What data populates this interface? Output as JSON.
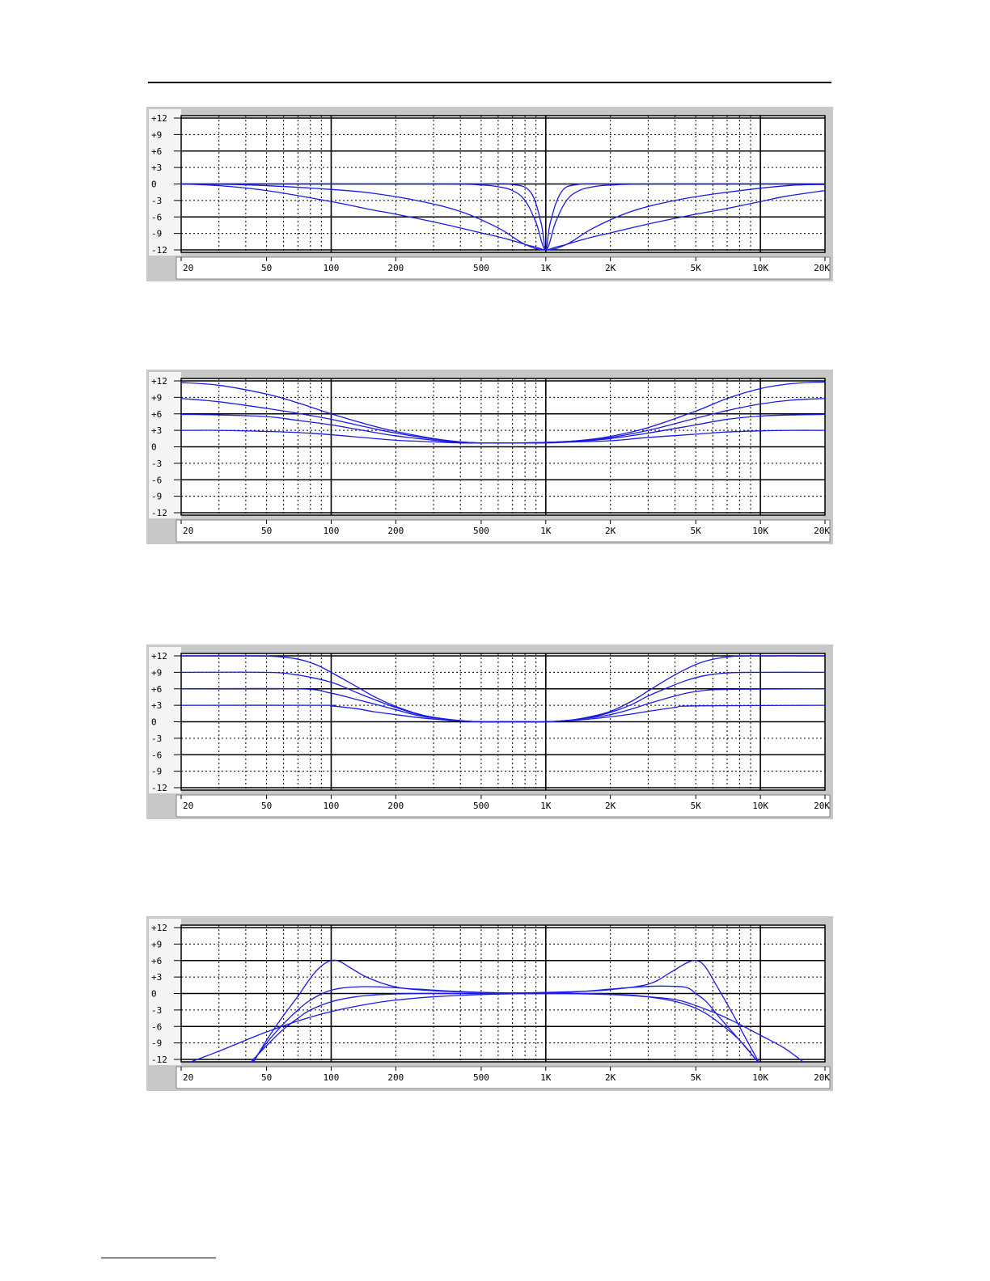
{
  "chart_data": [
    {
      "type": "line",
      "title": "",
      "xlabel": "",
      "ylabel": "",
      "x_scale": "log",
      "xlim": [
        20,
        20000
      ],
      "ylim": [
        -12,
        12
      ],
      "grid": true,
      "x_tick_labels": [
        {
          "value": 20,
          "label": "20"
        },
        {
          "value": 50,
          "label": "50"
        },
        {
          "value": 100,
          "label": "100"
        },
        {
          "value": 200,
          "label": "200"
        },
        {
          "value": 500,
          "label": "500"
        },
        {
          "value": 1000,
          "label": "1K"
        },
        {
          "value": 2000,
          "label": "2K"
        },
        {
          "value": 5000,
          "label": "5K"
        },
        {
          "value": 10000,
          "label": "10K"
        },
        {
          "value": 20000,
          "label": "20K"
        }
      ],
      "y_tick_labels": [
        {
          "value": 12,
          "label": "+12"
        },
        {
          "value": 9,
          "label": "+9"
        },
        {
          "value": 6,
          "label": "+6"
        },
        {
          "value": 3,
          "label": "+3"
        },
        {
          "value": 0,
          "label": "0"
        },
        {
          "value": -3,
          "label": "-3"
        },
        {
          "value": -6,
          "label": "-6"
        },
        {
          "value": -9,
          "label": "-9"
        },
        {
          "value": -12,
          "label": "-12"
        }
      ],
      "line_color": "#1a1ae6",
      "series": [
        {
          "x": [
            20,
            200,
            500,
            700,
            850,
            950,
            1000,
            1050,
            1180,
            1400,
            2000,
            5000,
            20000
          ],
          "y": [
            0,
            0,
            0,
            -0.1,
            -1.5,
            -7,
            -12,
            -7,
            -1.5,
            -0.1,
            0,
            0,
            0
          ]
        },
        {
          "x": [
            20,
            300,
            500,
            600,
            700,
            800,
            900,
            1000,
            1110,
            1250,
            1430,
            1670,
            2000,
            3300,
            20000
          ],
          "y": [
            0,
            0,
            -0.2,
            -0.5,
            -1.2,
            -3,
            -7,
            -12,
            -7,
            -3,
            -1.2,
            -0.5,
            -0.2,
            0,
            0
          ]
        },
        {
          "x": [
            20,
            30,
            50,
            100,
            150,
            250,
            400,
            600,
            800,
            1000,
            1250,
            1670,
            2500,
            4000,
            6700,
            13300,
            20000
          ],
          "y": [
            0,
            -0.05,
            -0.3,
            -1,
            -1.6,
            -3,
            -5,
            -8,
            -11,
            -12,
            -11,
            -8,
            -5,
            -3,
            -1.6,
            -0.3,
            -0.1
          ]
        },
        {
          "x": [
            20,
            30,
            50,
            100,
            150,
            200,
            300,
            400,
            500,
            600,
            700,
            800,
            900,
            1000,
            1110,
            1250,
            1430,
            1670,
            2000,
            2500,
            3330,
            5000,
            6700,
            10000,
            13300,
            20000
          ],
          "y": [
            0,
            -0.3,
            -1.2,
            -3.2,
            -4.6,
            -5.5,
            -6.9,
            -8,
            -8.9,
            -9.6,
            -10.3,
            -11,
            -11.5,
            -12,
            -11.5,
            -11,
            -10.3,
            -9.6,
            -8.9,
            -8,
            -6.9,
            -5.5,
            -4.6,
            -3.2,
            -2.2,
            -1.2
          ]
        }
      ]
    },
    {
      "type": "line",
      "title": "",
      "xlabel": "",
      "ylabel": "",
      "x_scale": "log",
      "xlim": [
        20,
        20000
      ],
      "ylim": [
        -12,
        12
      ],
      "grid": true,
      "x_tick_labels": [
        {
          "value": 20,
          "label": "20"
        },
        {
          "value": 50,
          "label": "50"
        },
        {
          "value": 100,
          "label": "100"
        },
        {
          "value": 200,
          "label": "200"
        },
        {
          "value": 500,
          "label": "500"
        },
        {
          "value": 1000,
          "label": "1K"
        },
        {
          "value": 2000,
          "label": "2K"
        },
        {
          "value": 5000,
          "label": "5K"
        },
        {
          "value": 10000,
          "label": "10K"
        },
        {
          "value": 20000,
          "label": "20K"
        }
      ],
      "y_tick_labels": [
        {
          "value": 12,
          "label": "+12"
        },
        {
          "value": 9,
          "label": "+9"
        },
        {
          "value": 6,
          "label": "+6"
        },
        {
          "value": 3,
          "label": "+3"
        },
        {
          "value": 0,
          "label": "0"
        },
        {
          "value": -3,
          "label": "-3"
        },
        {
          "value": -6,
          "label": "-6"
        },
        {
          "value": -9,
          "label": "-9"
        },
        {
          "value": -12,
          "label": "-12"
        }
      ],
      "line_color": "#1a1ae6",
      "series": [
        {
          "x": [
            20,
            30,
            50,
            70,
            100,
            150,
            200,
            300,
            400,
            500,
            700,
            1000,
            1400,
            2000,
            3000,
            5000,
            7000,
            10000,
            14000,
            20000
          ],
          "y": [
            11.7,
            11.2,
            9.6,
            8,
            6,
            4,
            2.8,
            1.5,
            0.9,
            0.7,
            0.7,
            0.8,
            1.1,
            1.9,
            3.5,
            6.5,
            8.8,
            10.6,
            11.5,
            11.8
          ]
        },
        {
          "x": [
            20,
            30,
            50,
            70,
            100,
            150,
            200,
            300,
            400,
            500,
            700,
            1000,
            1400,
            2000,
            3000,
            5000,
            7000,
            10000,
            14000,
            20000
          ],
          "y": [
            8.8,
            8.2,
            7,
            6.1,
            5,
            3.5,
            2.5,
            1.4,
            0.9,
            0.7,
            0.7,
            0.8,
            1.1,
            1.7,
            3,
            5.2,
            6.6,
            7.8,
            8.5,
            8.8
          ]
        },
        {
          "x": [
            20,
            30,
            50,
            70,
            100,
            150,
            200,
            300,
            400,
            500,
            700,
            1000,
            1400,
            2000,
            3000,
            5000,
            7000,
            10000,
            14000,
            20000
          ],
          "y": [
            5.9,
            5.8,
            5.5,
            4.8,
            4,
            2.8,
            2,
            1.2,
            0.8,
            0.7,
            0.7,
            0.8,
            1,
            1.5,
            2.5,
            4,
            5,
            5.6,
            5.8,
            5.9
          ]
        },
        {
          "x": [
            20,
            30,
            50,
            70,
            100,
            150,
            200,
            300,
            400,
            500,
            700,
            1000,
            1400,
            2000,
            3000,
            5000,
            7000,
            10000,
            14000,
            20000
          ],
          "y": [
            3,
            3,
            2.8,
            2.6,
            2.2,
            1.6,
            1.2,
            0.9,
            0.7,
            0.7,
            0.7,
            0.7,
            0.9,
            1.1,
            1.7,
            2.3,
            2.7,
            2.9,
            3,
            3
          ]
        }
      ]
    },
    {
      "type": "line",
      "title": "",
      "xlabel": "",
      "ylabel": "",
      "x_scale": "log",
      "xlim": [
        20,
        20000
      ],
      "ylim": [
        -12,
        12
      ],
      "grid": true,
      "x_tick_labels": [
        {
          "value": 20,
          "label": "20"
        },
        {
          "value": 50,
          "label": "50"
        },
        {
          "value": 100,
          "label": "100"
        },
        {
          "value": 200,
          "label": "200"
        },
        {
          "value": 500,
          "label": "500"
        },
        {
          "value": 1000,
          "label": "1K"
        },
        {
          "value": 2000,
          "label": "2K"
        },
        {
          "value": 5000,
          "label": "5K"
        },
        {
          "value": 10000,
          "label": "10K"
        },
        {
          "value": 20000,
          "label": "20K"
        }
      ],
      "y_tick_labels": [
        {
          "value": 12,
          "label": "+12"
        },
        {
          "value": 9,
          "label": "+9"
        },
        {
          "value": 6,
          "label": "+6"
        },
        {
          "value": 3,
          "label": "+3"
        },
        {
          "value": 0,
          "label": "0"
        },
        {
          "value": -3,
          "label": "-3"
        },
        {
          "value": -6,
          "label": "-6"
        },
        {
          "value": -9,
          "label": "-9"
        },
        {
          "value": -12,
          "label": "-12"
        }
      ],
      "line_color": "#1a1ae6",
      "series": [
        {
          "x": [
            20,
            40,
            55,
            70,
            85,
            100,
            130,
            160,
            200,
            250,
            300,
            400,
            500,
            700,
            1000,
            1300,
            1600,
            2000,
            2500,
            3000,
            3700,
            4500,
            5500,
            7000,
            9000,
            20000
          ],
          "y": [
            12,
            12,
            11.9,
            11.4,
            10.4,
            9,
            6.5,
            4.5,
            2.8,
            1.5,
            0.8,
            0.2,
            0,
            0,
            0,
            0.3,
            0.9,
            1.9,
            3.7,
            5.6,
            7.8,
            9.6,
            11,
            11.8,
            12,
            12
          ]
        },
        {
          "x": [
            20,
            50,
            70,
            100,
            130,
            160,
            200,
            250,
            300,
            400,
            500,
            700,
            1000,
            1300,
            1600,
            2000,
            2500,
            3000,
            3700,
            4500,
            5500,
            7000,
            10000,
            20000
          ],
          "y": [
            9,
            9,
            8.5,
            7.2,
            5.4,
            4,
            2.6,
            1.4,
            0.8,
            0.2,
            0,
            0,
            0,
            0.3,
            0.8,
            1.7,
            3.1,
            4.7,
            6.2,
            7.5,
            8.4,
            8.9,
            9,
            9
          ]
        },
        {
          "x": [
            20,
            70,
            100,
            130,
            160,
            200,
            250,
            300,
            400,
            500,
            700,
            1000,
            1300,
            1600,
            2000,
            2500,
            3000,
            4000,
            5000,
            7000,
            20000
          ],
          "y": [
            6,
            6,
            5.2,
            4.1,
            3.2,
            2.2,
            1.2,
            0.7,
            0.2,
            0,
            0,
            0,
            0.3,
            0.7,
            1.3,
            2.3,
            3.3,
            4.7,
            5.5,
            5.9,
            6
          ]
        },
        {
          "x": [
            20,
            90,
            100,
            130,
            160,
            200,
            250,
            300,
            400,
            500,
            700,
            1000,
            1300,
            1600,
            2000,
            2500,
            3000,
            4000,
            5000,
            20000
          ],
          "y": [
            3,
            3,
            2.9,
            2.4,
            1.8,
            1.3,
            0.8,
            0.5,
            0.1,
            0,
            0,
            0,
            0.2,
            0.5,
            0.9,
            1.4,
            1.9,
            2.6,
            2.9,
            3
          ]
        }
      ]
    },
    {
      "type": "line",
      "title": "",
      "xlabel": "",
      "ylabel": "",
      "x_scale": "log",
      "xlim": [
        20,
        20000
      ],
      "ylim": [
        -12,
        12
      ],
      "grid": true,
      "x_tick_labels": [
        {
          "value": 20,
          "label": "20"
        },
        {
          "value": 50,
          "label": "50"
        },
        {
          "value": 100,
          "label": "100"
        },
        {
          "value": 200,
          "label": "200"
        },
        {
          "value": 500,
          "label": "500"
        },
        {
          "value": 1000,
          "label": "1K"
        },
        {
          "value": 2000,
          "label": "2K"
        },
        {
          "value": 5000,
          "label": "5K"
        },
        {
          "value": 10000,
          "label": "10K"
        },
        {
          "value": 20000,
          "label": "20K"
        }
      ],
      "y_tick_labels": [
        {
          "value": 12,
          "label": "+12"
        },
        {
          "value": 9,
          "label": "+9"
        },
        {
          "value": 6,
          "label": "+6"
        },
        {
          "value": 3,
          "label": "+3"
        },
        {
          "value": 0,
          "label": "0"
        },
        {
          "value": -3,
          "label": "-3"
        },
        {
          "value": -6,
          "label": "-6"
        },
        {
          "value": -9,
          "label": "-9"
        },
        {
          "value": -12,
          "label": "-12"
        }
      ],
      "line_color": "#1a1ae6",
      "series": [
        {
          "x": [
            43,
            50,
            60,
            70,
            80,
            90,
            100,
            110,
            125,
            150,
            200,
            300,
            500,
            700,
            1000,
            1500,
            2000,
            3000,
            3800,
            4500,
            5000,
            5500,
            6300,
            7500,
            8500,
            10000
          ],
          "y": [
            -12.8,
            -8.5,
            -4,
            -0.5,
            2.8,
            5,
            6,
            5.8,
            4.5,
            2.8,
            1.2,
            0.5,
            0.2,
            0.1,
            0.2,
            0.4,
            0.7,
            1.7,
            3.8,
            5.5,
            6,
            5,
            1.2,
            -4,
            -8,
            -13
          ]
        },
        {
          "x": [
            42,
            50,
            60,
            70,
            80,
            100,
            130,
            170,
            250,
            500,
            1000,
            1500,
            2000,
            3000,
            4000,
            4600,
            5000,
            5600,
            6500,
            8000,
            10000
          ],
          "y": [
            -13,
            -9,
            -5.5,
            -3,
            -1.2,
            0.6,
            1.2,
            1.2,
            0.8,
            0.2,
            0.1,
            0.4,
            0.8,
            1.3,
            1.3,
            1,
            0,
            -1.5,
            -4.5,
            -8.5,
            -13
          ]
        },
        {
          "x": [
            41,
            50,
            60,
            70,
            80,
            100,
            130,
            170,
            250,
            400,
            600,
            1000,
            1500,
            2500,
            3500,
            4500,
            5500,
            6500,
            8000,
            10000
          ],
          "y": [
            -13,
            -9.5,
            -6.5,
            -4.5,
            -3,
            -1.5,
            -0.6,
            -0.2,
            0,
            0,
            0,
            0,
            0,
            -0.3,
            -1,
            -2,
            -3.5,
            -5.5,
            -8.5,
            -13
          ]
        },
        {
          "x": [
            22,
            30,
            40,
            50,
            70,
            100,
            150,
            200,
            300,
            500,
            1000,
            2000,
            3000,
            4000,
            5000,
            7000,
            10000,
            13000,
            16000
          ],
          "y": [
            -12.5,
            -10.5,
            -8.5,
            -7,
            -5,
            -3.3,
            -1.9,
            -1.2,
            -0.6,
            -0.2,
            0,
            -0.2,
            -0.6,
            -1.1,
            -2.2,
            -4.5,
            -7.6,
            -10,
            -12.6
          ]
        }
      ]
    }
  ]
}
